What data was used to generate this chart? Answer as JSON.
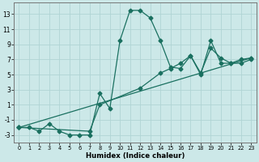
{
  "xlabel": "Humidex (Indice chaleur)",
  "background_color": "#cce8e8",
  "grid_color": "#b0d4d4",
  "line_color": "#1a7060",
  "xlim": [
    -0.5,
    23.5
  ],
  "ylim": [
    -4,
    14.5
  ],
  "yticks": [
    -3,
    -1,
    1,
    3,
    5,
    7,
    9,
    11,
    13
  ],
  "xticks": [
    0,
    1,
    2,
    3,
    4,
    5,
    6,
    7,
    8,
    9,
    10,
    11,
    12,
    13,
    14,
    15,
    16,
    17,
    18,
    19,
    20,
    21,
    22,
    23
  ],
  "line1_x": [
    0,
    1,
    2,
    3,
    4,
    5,
    6,
    7,
    8,
    9,
    10,
    11,
    12,
    13,
    14,
    15,
    16,
    17,
    18,
    19,
    20,
    21,
    22,
    23
  ],
  "line1_y": [
    -2,
    -2,
    -2.5,
    -1.5,
    -2.5,
    -3,
    -3,
    -3,
    2.5,
    0.5,
    9.5,
    13.5,
    13.5,
    12.5,
    9.5,
    6,
    5.8,
    7.5,
    5,
    9.5,
    6.5,
    6.5,
    6.5,
    7
  ],
  "line2_x": [
    0,
    23
  ],
  "line2_y": [
    -2,
    7.2
  ],
  "line3_x": [
    0,
    7,
    8,
    12,
    14,
    15,
    16,
    17,
    18,
    19,
    20,
    21,
    22,
    23
  ],
  "line3_y": [
    -2,
    -2.5,
    1.0,
    3.2,
    5.2,
    5.8,
    6.5,
    7.5,
    5.2,
    8.5,
    7.2,
    6.5,
    7.0,
    7.2
  ]
}
